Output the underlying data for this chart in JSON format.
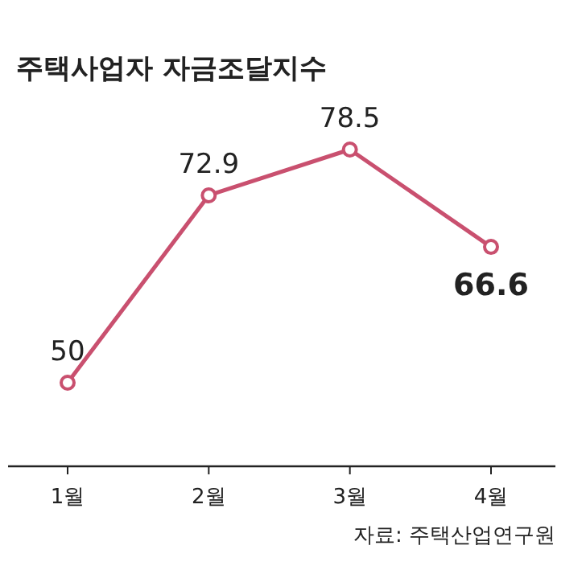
{
  "chart_data": {
    "type": "line",
    "title": "주택사업자 자금조달지수",
    "categories": [
      "1월",
      "2월",
      "3월",
      "4월"
    ],
    "series": [
      {
        "color": "#c9506f",
        "values": [
          50,
          72.9,
          78.5,
          66.6
        ]
      }
    ],
    "data_labels": true,
    "marker": "circle",
    "line_style": "solid",
    "annotations": [
      "자료: 주택산업연구원"
    ]
  }
}
